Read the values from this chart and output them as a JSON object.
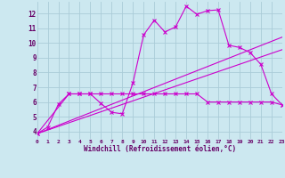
{
  "xlabel": "Windchill (Refroidissement éolien,°C)",
  "bg_color": "#cce8f0",
  "grid_color": "#aaccd8",
  "line_color": "#cc00cc",
  "text_color": "#660066",
  "xlim": [
    0,
    23
  ],
  "ylim": [
    3.5,
    12.8
  ],
  "xticks": [
    0,
    1,
    2,
    3,
    4,
    5,
    6,
    7,
    8,
    9,
    10,
    11,
    12,
    13,
    14,
    15,
    16,
    17,
    18,
    19,
    20,
    21,
    22,
    23
  ],
  "yticks": [
    4,
    5,
    6,
    7,
    8,
    9,
    10,
    11,
    12
  ],
  "line1_x": [
    0,
    1,
    2,
    3,
    4,
    5,
    6,
    7,
    8,
    9,
    10,
    11,
    12,
    13,
    14,
    15,
    16,
    17,
    18,
    19,
    20,
    21,
    22,
    23
  ],
  "line1_y": [
    3.85,
    4.3,
    5.85,
    6.55,
    6.55,
    6.55,
    5.9,
    5.3,
    5.2,
    7.3,
    10.55,
    11.55,
    10.75,
    11.1,
    12.5,
    11.95,
    12.2,
    12.25,
    9.85,
    9.7,
    9.35,
    8.55,
    6.55,
    5.8
  ],
  "line2_x": [
    0,
    3,
    4,
    5,
    6,
    7,
    8,
    9,
    10,
    11,
    12,
    13,
    14,
    15,
    16,
    17,
    18,
    19,
    20,
    21,
    22,
    23
  ],
  "line2_y": [
    3.85,
    6.55,
    6.55,
    6.55,
    6.55,
    6.55,
    6.55,
    6.55,
    6.55,
    6.55,
    6.55,
    6.55,
    6.55,
    6.55,
    6.0,
    6.0,
    6.0,
    6.0,
    6.0,
    6.0,
    6.0,
    5.8
  ],
  "line3_x": [
    0,
    23
  ],
  "line3_y": [
    3.85,
    10.4
  ],
  "line4_x": [
    0,
    23
  ],
  "line4_y": [
    3.85,
    9.55
  ]
}
